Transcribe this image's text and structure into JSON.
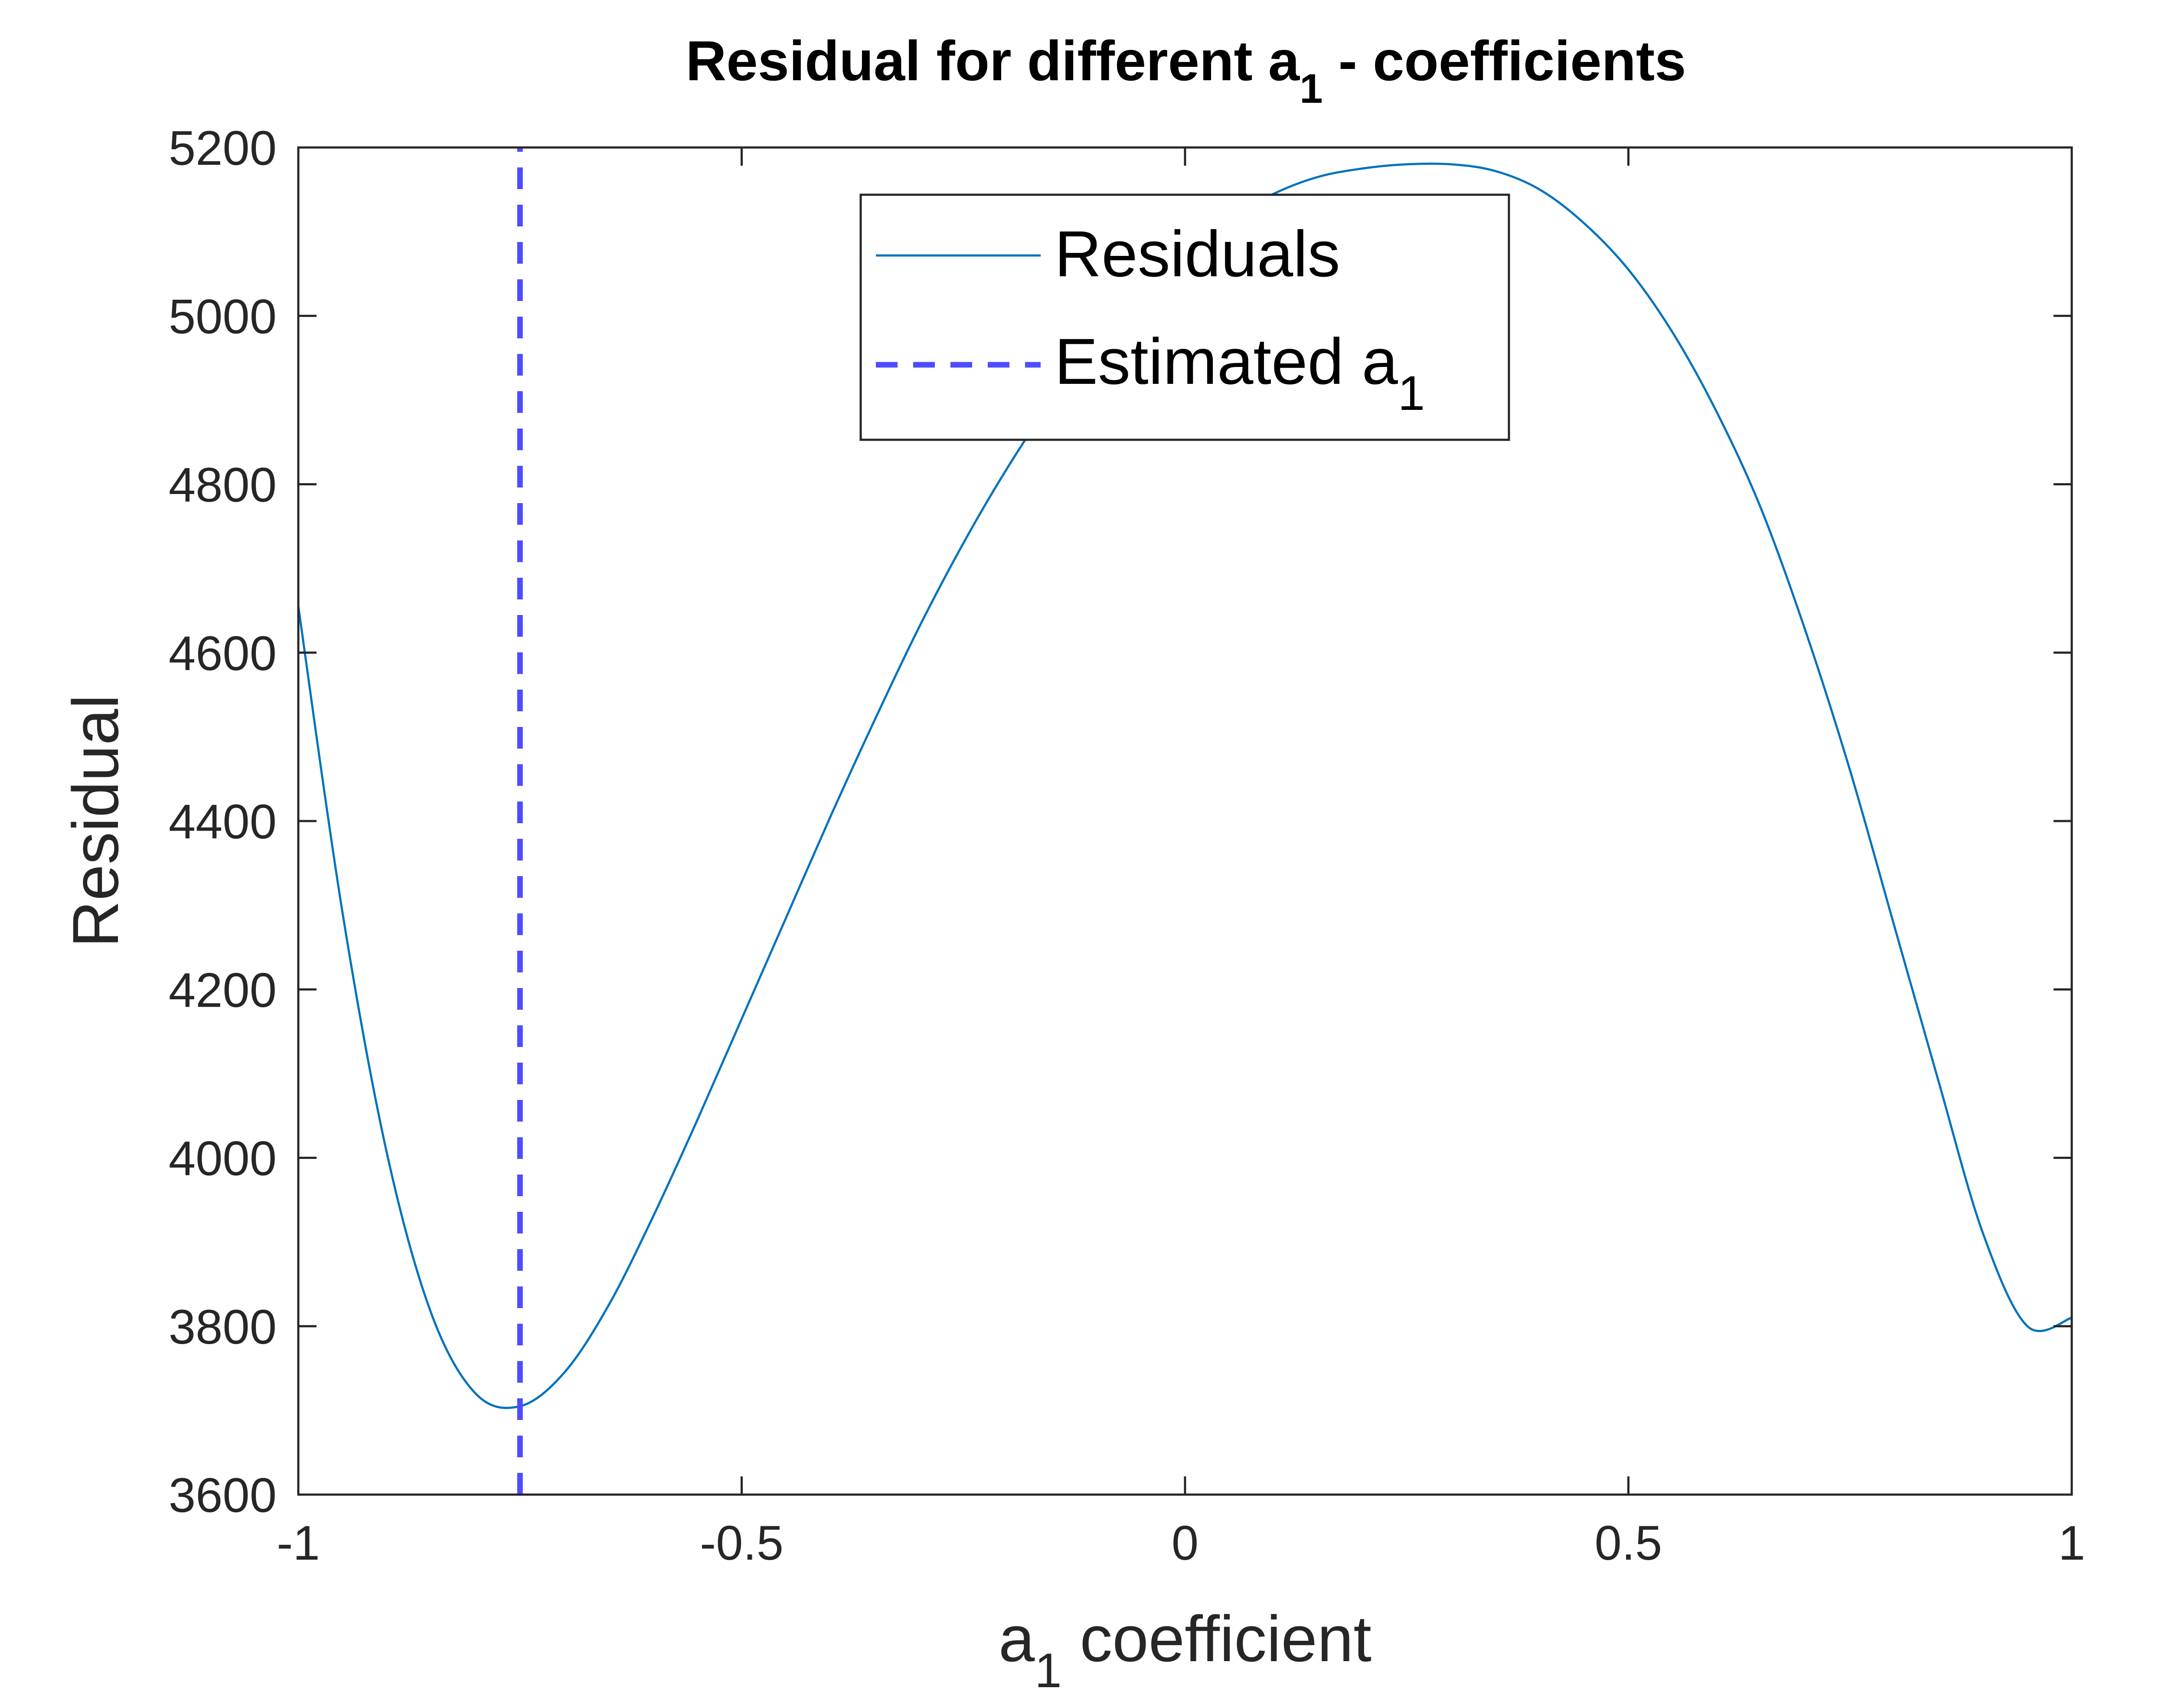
{
  "chart_data": {
    "type": "line",
    "title": {
      "main": "Residual for different a",
      "sub": "1",
      "tail": " - coefficients"
    },
    "xlabel": {
      "main": "a",
      "sub": "1",
      "tail": " coefficient"
    },
    "ylabel": "Residual",
    "xlim": [
      -1,
      1
    ],
    "ylim": [
      3600,
      5200
    ],
    "xticks": [
      -1,
      -0.5,
      0,
      0.5,
      1
    ],
    "xtick_labels": [
      "-1",
      "-0.5",
      "0",
      "0.5",
      "1"
    ],
    "yticks": [
      3600,
      3800,
      4000,
      4200,
      4400,
      4600,
      4800,
      5000,
      5200
    ],
    "ytick_labels": [
      "3600",
      "3800",
      "4000",
      "4200",
      "4400",
      "4600",
      "4800",
      "5000",
      "5200"
    ],
    "grid": false,
    "legend_position": "top-center",
    "series": [
      {
        "name": "Residuals",
        "style": "solid",
        "color": "#0072BD",
        "x": [
          -1,
          -0.95,
          -0.9,
          -0.85,
          -0.8,
          -0.75,
          -0.7,
          -0.65,
          -0.6,
          -0.55,
          -0.5,
          -0.45,
          -0.4,
          -0.35,
          -0.3,
          -0.25,
          -0.2,
          -0.15,
          -0.1,
          -0.05,
          0,
          0.05,
          0.1,
          0.15,
          0.2,
          0.25,
          0.3,
          0.35,
          0.4,
          0.45,
          0.5,
          0.55,
          0.6,
          0.65,
          0.7,
          0.75,
          0.8,
          0.85,
          0.9,
          0.95,
          1
        ],
        "y": [
          4655,
          4290,
          4005,
          3815,
          3720,
          3705,
          3745,
          3825,
          3930,
          4045,
          4165,
          4285,
          4405,
          4520,
          4630,
          4730,
          4820,
          4900,
          4970,
          5030,
          5080,
          5115,
          5145,
          5165,
          5175,
          5180,
          5180,
          5172,
          5150,
          5110,
          5055,
          4980,
          4885,
          4770,
          4625,
          4460,
          4275,
          4090,
          3910,
          3800,
          3810
        ]
      },
      {
        "name": {
          "main": "Estimated a",
          "sub": "1"
        },
        "style": "dashed",
        "color": "#4D4DFF",
        "x": [
          -0.75,
          -0.75
        ],
        "y": [
          3600,
          5200
        ]
      }
    ]
  }
}
